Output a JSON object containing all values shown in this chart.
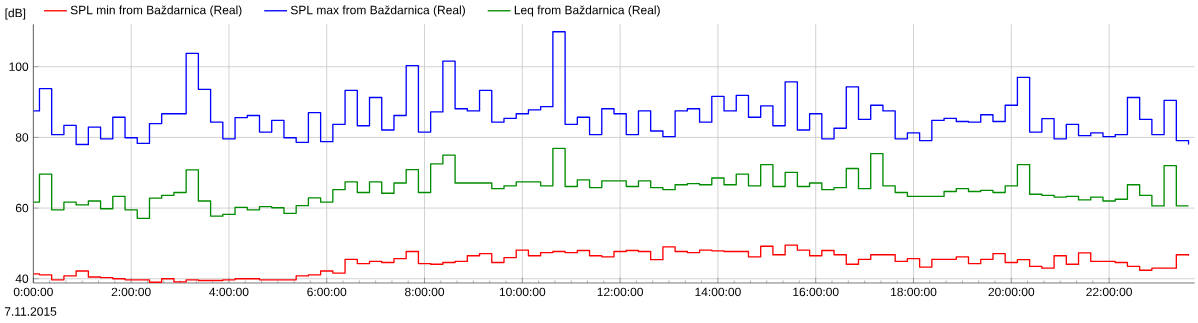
{
  "chart_data": {
    "type": "step",
    "ylabel": "[dB]",
    "annotations": [
      "7.11.2015"
    ],
    "x": [
      0,
      0.125,
      0.375,
      0.625,
      0.875,
      1.125,
      1.375,
      1.625,
      1.875,
      2.125,
      2.375,
      2.625,
      2.875,
      3.125,
      3.375,
      3.625,
      3.875,
      4.125,
      4.375,
      4.625,
      4.875,
      5.125,
      5.375,
      5.625,
      5.875,
      6.125,
      6.375,
      6.625,
      6.875,
      7.125,
      7.375,
      7.625,
      7.875,
      8.125,
      8.375,
      8.625,
      8.875,
      9.125,
      9.375,
      9.625,
      9.875,
      10.125,
      10.375,
      10.625,
      10.875,
      11.125,
      11.375,
      11.625,
      11.875,
      12.125,
      12.375,
      12.625,
      12.875,
      13.125,
      13.375,
      13.625,
      13.875,
      14.125,
      14.375,
      14.625,
      14.875,
      15.125,
      15.375,
      15.625,
      15.875,
      16.125,
      16.375,
      16.625,
      16.875,
      17.125,
      17.375,
      17.625,
      17.875,
      18.125,
      18.375,
      18.625,
      18.875,
      19.125,
      19.375,
      19.625,
      19.875,
      20.125,
      20.375,
      20.625,
      20.875,
      21.125,
      21.375,
      21.625,
      21.875,
      22.125,
      22.375,
      22.625,
      22.875,
      23.125,
      23.375,
      23.625
    ],
    "series": [
      {
        "name": "SPL min from Baždarnica (Real)",
        "color": "#ff0000",
        "values": [
          41.4,
          41.1,
          39.7,
          40.8,
          42.2,
          40.5,
          40.3,
          40.0,
          39.7,
          39.7,
          39.0,
          40.0,
          39.1,
          39.7,
          39.5,
          39.5,
          39.7,
          40.0,
          40.0,
          39.7,
          39.7,
          39.7,
          40.8,
          41.1,
          42.2,
          41.6,
          45.5,
          44.3,
          44.9,
          44.6,
          45.7,
          47.7,
          44.3,
          44.1,
          44.6,
          44.9,
          46.5,
          47.1,
          44.6,
          46.0,
          48.1,
          46.5,
          47.4,
          47.7,
          47.4,
          48.0,
          46.5,
          46.2,
          47.7,
          48.0,
          47.7,
          45.4,
          49.0,
          47.7,
          47.4,
          48.1,
          47.9,
          47.7,
          47.7,
          46.2,
          49.2,
          46.8,
          49.5,
          48.1,
          46.5,
          48.0,
          46.8,
          44.1,
          45.5,
          46.8,
          46.8,
          44.9,
          45.7,
          43.3,
          45.5,
          45.5,
          46.2,
          44.3,
          45.5,
          47.1,
          44.6,
          45.4,
          43.5,
          43.0,
          46.5,
          44.1,
          47.3,
          44.9,
          44.9,
          44.6,
          43.5,
          42.4,
          43.0,
          43.0,
          46.8,
          46.5
        ]
      },
      {
        "name": "SPL max from Baždarnica (Real)",
        "color": "#0000ff",
        "values": [
          87.5,
          93.8,
          80.8,
          83.4,
          78.0,
          82.9,
          79.6,
          85.7,
          79.9,
          78.3,
          83.9,
          86.7,
          86.7,
          103.8,
          93.6,
          84.3,
          79.6,
          85.6,
          86.2,
          81.5,
          84.8,
          79.9,
          78.6,
          87.0,
          78.8,
          83.7,
          93.3,
          83.3,
          91.3,
          82.1,
          86.2,
          100.3,
          81.5,
          87.2,
          101.6,
          88.1,
          87.5,
          93.3,
          84.3,
          85.4,
          86.7,
          87.8,
          88.7,
          109.9,
          83.7,
          85.7,
          80.8,
          88.1,
          86.7,
          80.8,
          87.5,
          81.8,
          80.2,
          87.5,
          88.1,
          84.3,
          91.6,
          87.5,
          91.9,
          85.7,
          88.9,
          83.3,
          95.7,
          82.1,
          86.7,
          79.6,
          82.6,
          94.3,
          85.1,
          89.1,
          87.5,
          79.6,
          81.3,
          79.1,
          84.8,
          85.4,
          84.5,
          84.3,
          86.4,
          84.5,
          89.1,
          97.0,
          81.5,
          85.3,
          79.6,
          83.7,
          80.5,
          81.3,
          80.2,
          80.8,
          91.3,
          85.1,
          80.8,
          90.5,
          79.1,
          78.0
        ]
      },
      {
        "name": "Leq from Baždarnica (Real)",
        "color": "#008c00",
        "values": [
          61.7,
          69.6,
          59.5,
          61.7,
          60.9,
          62.0,
          59.8,
          63.3,
          59.5,
          57.1,
          62.8,
          63.6,
          64.4,
          70.8,
          62.0,
          57.7,
          58.2,
          60.2,
          59.5,
          60.4,
          60.1,
          58.5,
          60.7,
          62.9,
          61.7,
          65.2,
          67.4,
          64.4,
          67.4,
          64.2,
          67.1,
          70.9,
          64.4,
          72.5,
          75.0,
          67.1,
          67.1,
          67.1,
          65.5,
          66.3,
          67.4,
          67.4,
          66.3,
          76.9,
          66.1,
          68.0,
          65.8,
          67.7,
          67.7,
          66.1,
          67.7,
          65.8,
          65.2,
          66.6,
          66.9,
          66.6,
          68.5,
          66.6,
          69.6,
          66.3,
          72.3,
          66.1,
          70.1,
          66.1,
          67.1,
          65.2,
          65.8,
          71.2,
          65.5,
          75.4,
          66.3,
          64.4,
          63.3,
          63.3,
          63.3,
          64.7,
          65.5,
          64.7,
          65.0,
          64.4,
          66.3,
          72.3,
          63.9,
          63.6,
          63.1,
          63.3,
          62.3,
          63.1,
          62.0,
          62.5,
          66.6,
          63.6,
          60.6,
          72.0,
          60.6,
          60.6
        ]
      }
    ],
    "xlim": [
      0,
      23.75
    ],
    "ylim": [
      38.8,
      112
    ],
    "xticks": [
      {
        "value": 0,
        "label": "0:00:00"
      },
      {
        "value": 2,
        "label": "2:00:00"
      },
      {
        "value": 4,
        "label": "4:00:00"
      },
      {
        "value": 6,
        "label": "6:00:00"
      },
      {
        "value": 8,
        "label": "8:00:00"
      },
      {
        "value": 10,
        "label": "10:00:00"
      },
      {
        "value": 12,
        "label": "12:00:00"
      },
      {
        "value": 14,
        "label": "14:00:00"
      },
      {
        "value": 16,
        "label": "16:00:00"
      },
      {
        "value": 18,
        "label": "18:00:00"
      },
      {
        "value": 20,
        "label": "20:00:00"
      },
      {
        "value": 22,
        "label": "22:00:00"
      }
    ],
    "yticks": [
      40,
      60,
      80,
      100
    ],
    "grid": true,
    "legend": "top left",
    "marker": "none",
    "line_style": "solid"
  }
}
